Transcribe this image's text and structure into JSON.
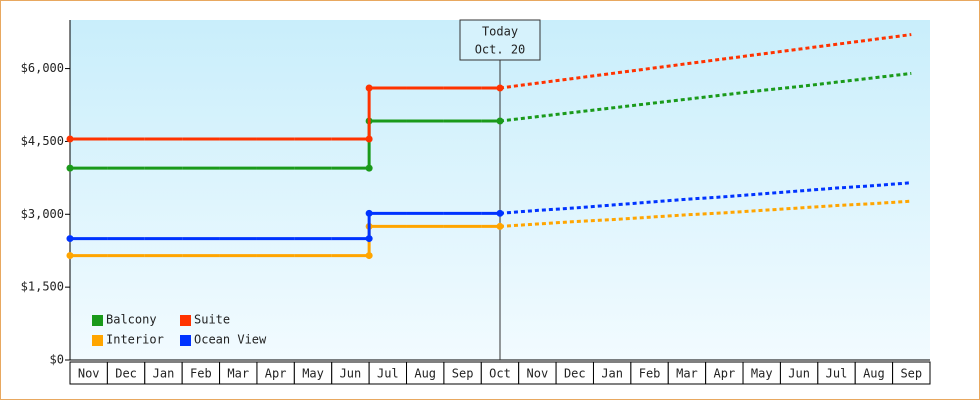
{
  "chart_data": {
    "type": "line",
    "categories": [
      "Nov",
      "Dec",
      "Jan",
      "Feb",
      "Mar",
      "Apr",
      "May",
      "Jun",
      "Jul",
      "Aug",
      "Sep",
      "Oct",
      "Nov",
      "Dec",
      "Jan",
      "Feb",
      "Mar",
      "Apr",
      "May",
      "Jun",
      "Jul",
      "Aug",
      "Sep"
    ],
    "series": [
      {
        "name": "Balcony",
        "color": "#1a9a1a",
        "values": [
          3950,
          3950,
          3950,
          3950,
          3950,
          3950,
          3950,
          3950,
          4920,
          4920,
          4920,
          4920,
          null,
          null,
          null,
          null,
          null,
          null,
          null,
          null,
          null,
          null,
          null
        ],
        "forecast": [
          null,
          null,
          null,
          null,
          null,
          null,
          null,
          null,
          null,
          null,
          null,
          4920,
          5010,
          5100,
          5190,
          5280,
          5370,
          5460,
          5550,
          5630,
          5720,
          5810,
          5900
        ]
      },
      {
        "name": "Suite",
        "color": "#ff3300",
        "values": [
          4550,
          4550,
          4550,
          4550,
          4550,
          4550,
          4550,
          4550,
          5600,
          5600,
          5600,
          5600,
          null,
          null,
          null,
          null,
          null,
          null,
          null,
          null,
          null,
          null,
          null
        ],
        "forecast": [
          null,
          null,
          null,
          null,
          null,
          null,
          null,
          null,
          null,
          null,
          null,
          5600,
          5700,
          5800,
          5900,
          6000,
          6100,
          6200,
          6300,
          6400,
          6500,
          6600,
          6700
        ]
      },
      {
        "name": "Interior",
        "color": "#ffa500",
        "values": [
          2150,
          2150,
          2150,
          2150,
          2150,
          2150,
          2150,
          2150,
          2750,
          2750,
          2750,
          2750,
          null,
          null,
          null,
          null,
          null,
          null,
          null,
          null,
          null,
          null,
          null
        ],
        "forecast": [
          null,
          null,
          null,
          null,
          null,
          null,
          null,
          null,
          null,
          null,
          null,
          2750,
          2800,
          2850,
          2890,
          2940,
          2990,
          3030,
          3080,
          3130,
          3180,
          3220,
          3270
        ]
      },
      {
        "name": "Ocean View",
        "color": "#0033ff",
        "values": [
          2500,
          2500,
          2500,
          2500,
          2500,
          2500,
          2500,
          2500,
          3020,
          3020,
          3020,
          3020,
          null,
          null,
          null,
          null,
          null,
          null,
          null,
          null,
          null,
          null,
          null
        ],
        "forecast": [
          null,
          null,
          null,
          null,
          null,
          null,
          null,
          null,
          null,
          null,
          null,
          3020,
          3080,
          3130,
          3190,
          3250,
          3310,
          3360,
          3420,
          3480,
          3540,
          3590,
          3650
        ]
      }
    ],
    "annotation": {
      "label": "Today",
      "date": "Oct. 20"
    },
    "ylim": [
      0,
      7000
    ],
    "yticks": [
      {
        "value": 0,
        "label": "$0"
      },
      {
        "value": 1500,
        "label": "$1,500"
      },
      {
        "value": 3000,
        "label": "$3,000"
      },
      {
        "value": 4500,
        "label": "$4,500"
      },
      {
        "value": 6000,
        "label": "$6,000"
      }
    ]
  }
}
